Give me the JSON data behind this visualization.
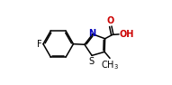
{
  "bg_color": "#ffffff",
  "bond_color": "#000000",
  "atom_colors": {
    "F": "#000000",
    "N": "#0000bb",
    "S": "#000000",
    "O": "#cc0000",
    "C": "#000000"
  },
  "figsize": [
    1.91,
    0.94
  ],
  "dpi": 100
}
